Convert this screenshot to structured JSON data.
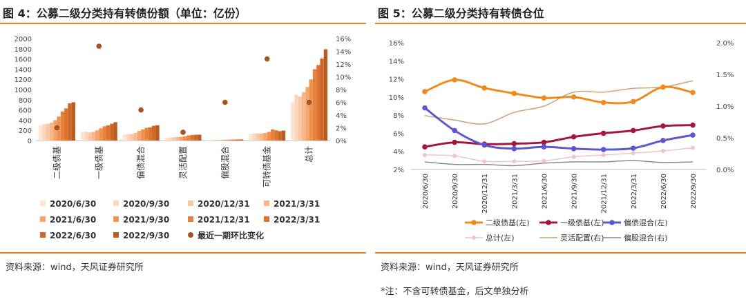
{
  "left_panel": {
    "title": "图 4：公募二级分类持有转债份额（单位：亿份）",
    "source": "资料来源：wind，天风证券研究所"
  },
  "right_panel": {
    "title": "图 5：公募二级分类持有转债仓位",
    "source": "资料来源：wind，天风证券研究所",
    "note": "*注：不含可转债基金，后文单独分析"
  },
  "chart_data": [
    {
      "type": "bar",
      "categories": [
        "二级债基",
        "一级债基",
        "偏债混合",
        "灵活配置",
        "偏股混合",
        "可转债基金",
        "总计"
      ],
      "y_left": {
        "ticks": [
          0,
          200,
          400,
          600,
          800,
          1000,
          1200,
          1400,
          1600,
          1800,
          2000
        ],
        "ylim": [
          0,
          2000
        ]
      },
      "y_right": {
        "ticks": [
          "0%",
          "2%",
          "4%",
          "6%",
          "8%",
          "10%",
          "12%",
          "14%",
          "16%"
        ],
        "ylim": [
          0,
          16
        ]
      },
      "series": [
        {
          "name": "2020/6/30",
          "color": "#fde4d3",
          "values": [
            300,
            170,
            120,
            55,
            12,
            130,
            760
          ]
        },
        {
          "name": "2020/9/30",
          "color": "#fbd6bf",
          "values": [
            320,
            175,
            125,
            60,
            12,
            135,
            900
          ]
        },
        {
          "name": "2020/12/31",
          "color": "#f9c7a6",
          "values": [
            330,
            160,
            130,
            62,
            12,
            140,
            860
          ]
        },
        {
          "name": "2021/3/31",
          "color": "#f7b889",
          "values": [
            350,
            170,
            150,
            68,
            14,
            140,
            950
          ]
        },
        {
          "name": "2021/6/30",
          "color": "#f4a46d",
          "values": [
            400,
            200,
            190,
            75,
            15,
            150,
            1050
          ]
        },
        {
          "name": "2021/9/30",
          "color": "#ef9151",
          "values": [
            470,
            240,
            220,
            85,
            17,
            170,
            1200
          ]
        },
        {
          "name": "2021/12/31",
          "color": "#e8813e",
          "values": [
            570,
            280,
            250,
            100,
            19,
            220,
            1400
          ]
        },
        {
          "name": "2022/3/31",
          "color": "#dc7431",
          "values": [
            630,
            300,
            260,
            110,
            20,
            200,
            1480
          ]
        },
        {
          "name": "2022/6/30",
          "color": "#cc6828",
          "values": [
            730,
            330,
            290,
            115,
            22,
            185,
            1610
          ]
        },
        {
          "name": "2022/9/30",
          "color": "#b85c22",
          "values": [
            750,
            360,
            300,
            115,
            22,
            195,
            1790
          ]
        }
      ],
      "scatter": {
        "name": "最近一期环比变化",
        "color": "#a5531f",
        "values": [
          2.0,
          14.8,
          4.8,
          1.3,
          6.0,
          12.8,
          6.0
        ]
      }
    },
    {
      "type": "line",
      "x": [
        "2020/6/30",
        "2020/9/30",
        "2020/12/31",
        "2021/3/31",
        "2021/6/30",
        "2021/9/30",
        "2021/12/31",
        "2022/3/31",
        "2022/6/30",
        "2022/9/30"
      ],
      "y_left": {
        "ticks": [
          "2%",
          "4%",
          "6%",
          "8%",
          "10%",
          "12%",
          "14%",
          "16%"
        ],
        "ylim": [
          2,
          16
        ]
      },
      "y_right": {
        "ticks": [
          "0.0%",
          "0.5%",
          "1.0%",
          "1.5%",
          "2.0%"
        ],
        "ylim": [
          0,
          2
        ]
      },
      "series": [
        {
          "name": "二级债基(左)",
          "axis": "left",
          "color": "#ef8a1c",
          "width": 3,
          "marker": true,
          "values": [
            10.6,
            11.9,
            11.0,
            10.4,
            9.9,
            10.0,
            9.4,
            9.5,
            11.1,
            10.5
          ]
        },
        {
          "name": "一级债基(左)",
          "axis": "left",
          "color": "#a4173c",
          "width": 3,
          "marker": true,
          "values": [
            4.5,
            5.0,
            4.8,
            4.85,
            5.0,
            5.6,
            6.0,
            6.3,
            6.8,
            6.9
          ]
        },
        {
          "name": "偏债混合(左)",
          "axis": "left",
          "color": "#5b57cf",
          "width": 3,
          "marker": true,
          "values": [
            8.8,
            6.3,
            4.7,
            4.3,
            4.5,
            4.3,
            4.2,
            4.35,
            5.2,
            5.8
          ]
        },
        {
          "name": "总计(左)",
          "axis": "left",
          "color": "#edc5ca",
          "width": 1.5,
          "marker": true,
          "values": [
            3.6,
            3.5,
            2.9,
            2.9,
            2.95,
            3.4,
            3.6,
            3.8,
            4.05,
            4.4
          ]
        },
        {
          "name": "灵活配置(右)",
          "axis": "right",
          "color": "#c9a27a",
          "width": 1.5,
          "marker": false,
          "values": [
            0.85,
            0.78,
            0.72,
            0.9,
            1.0,
            1.22,
            1.22,
            1.28,
            1.3,
            1.4
          ]
        },
        {
          "name": "偏股混合(右)",
          "axis": "right",
          "color": "#8a8a8a",
          "width": 1.5,
          "marker": false,
          "values": [
            0.12,
            0.08,
            0.08,
            0.06,
            0.1,
            0.12,
            0.12,
            0.14,
            0.11,
            0.12
          ]
        }
      ]
    }
  ]
}
